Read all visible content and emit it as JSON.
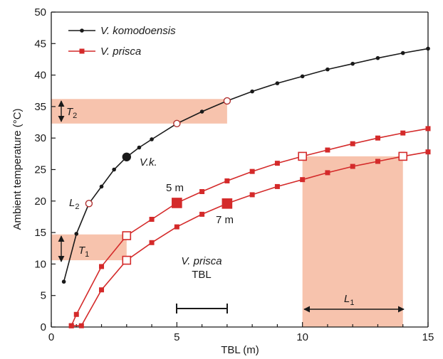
{
  "chart_data": {
    "type": "line",
    "xlabel": "TBL (m)",
    "ylabel": "Ambient temperature (°C)",
    "xlim": [
      0,
      15
    ],
    "ylim": [
      0,
      50
    ],
    "x_ticks": [
      0,
      5,
      10,
      15
    ],
    "y_ticks": [
      0,
      5,
      10,
      15,
      20,
      25,
      30,
      35,
      40,
      45,
      50
    ],
    "grid": false,
    "legend_position": "top-left",
    "series": [
      {
        "name": "V. komodoensis",
        "color": "#1a1a1a",
        "marker": "circle",
        "x": [
          0.5,
          1,
          1.5,
          2,
          2.5,
          3,
          3.5,
          4,
          5,
          6,
          7,
          8,
          9,
          10,
          11,
          12,
          13,
          14,
          15
        ],
        "y": [
          7.2,
          14.8,
          19.6,
          22.3,
          25.0,
          27.0,
          28.5,
          29.8,
          32.3,
          34.2,
          35.9,
          37.4,
          38.7,
          39.8,
          40.9,
          41.8,
          42.7,
          43.5,
          44.2
        ]
      },
      {
        "name": "V. prisca",
        "color": "#d42a2a",
        "marker": "square",
        "subseries": [
          {
            "x": [
              0.8,
              1,
              2,
              3,
              4,
              5,
              6,
              7,
              8,
              9,
              10,
              11,
              12,
              13,
              14,
              15
            ],
            "y": [
              0.2,
              2.0,
              9.6,
              14.5,
              17.1,
              19.7,
              21.5,
              23.2,
              24.7,
              26.0,
              27.1,
              28.1,
              29.1,
              30.0,
              30.8,
              31.5
            ]
          },
          {
            "x": [
              0.8,
              1.2,
              2,
              3,
              4,
              5,
              6,
              7,
              8,
              9,
              10,
              11,
              12,
              13,
              14,
              15
            ],
            "y": [
              0.2,
              0.2,
              5.9,
              10.6,
              13.4,
              15.9,
              17.9,
              19.6,
              21.0,
              22.3,
              23.4,
              24.5,
              25.5,
              26.3,
              27.1,
              27.8
            ]
          }
        ]
      }
    ],
    "highlight_points": [
      {
        "series": "V. komodoensis",
        "x": 3,
        "y": 27.0,
        "style": "filled-large"
      },
      {
        "series": "V. komodoensis",
        "x": 1.5,
        "y": 19.6,
        "style": "open"
      },
      {
        "series": "V. komodoensis",
        "x": 5,
        "y": 32.3,
        "style": "open"
      },
      {
        "series": "V. komodoensis",
        "x": 7,
        "y": 35.9,
        "style": "open"
      },
      {
        "series": "V. prisca 5 m",
        "x": 5,
        "y": 19.7,
        "style": "filled-large"
      },
      {
        "series": "V. prisca 7 m",
        "x": 7,
        "y": 19.6,
        "style": "filled-large"
      },
      {
        "series": "V. prisca 5 m",
        "x": 3,
        "y": 14.5,
        "style": "open"
      },
      {
        "series": "V. prisca 7 m",
        "x": 3,
        "y": 10.6,
        "style": "open"
      },
      {
        "series": "V. prisca 5 m",
        "x": 10,
        "y": 27.1,
        "style": "open"
      },
      {
        "series": "V. prisca 7 m",
        "x": 14,
        "y": 27.1,
        "style": "open"
      }
    ],
    "shaded_regions": [
      {
        "name": "T2",
        "x": [
          0,
          7
        ],
        "y": [
          32.3,
          36.2
        ]
      },
      {
        "name": "T1",
        "x": [
          0,
          3
        ],
        "y": [
          10.6,
          14.7
        ]
      },
      {
        "name": "L1",
        "x": [
          10,
          14
        ],
        "y": [
          0,
          27.1
        ]
      }
    ],
    "shade_color": "#f7c3ad",
    "annotations": {
      "T2": {
        "main": "T",
        "sub": "2"
      },
      "T1": {
        "main": "T",
        "sub": "1"
      },
      "L2": {
        "main": "L",
        "sub": "2"
      },
      "L1": {
        "main": "L",
        "sub": "1"
      },
      "vk": "V.k.",
      "five_m": "5 m",
      "seven_m": "7 m",
      "prisca_tbl_line1": "V. prisca",
      "prisca_tbl_line2": "TBL"
    }
  }
}
